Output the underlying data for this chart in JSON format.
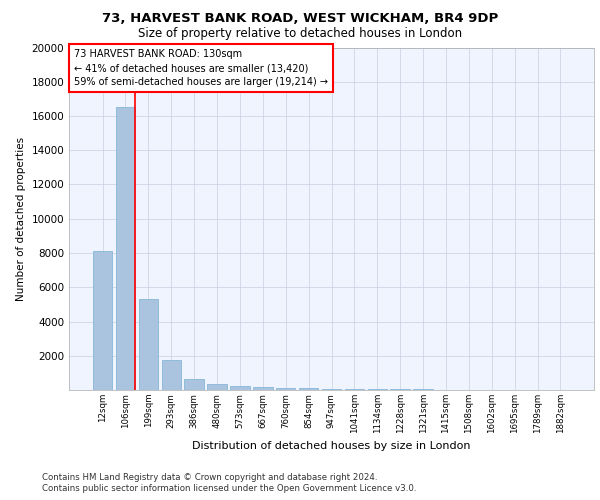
{
  "title1": "73, HARVEST BANK ROAD, WEST WICKHAM, BR4 9DP",
  "title2": "Size of property relative to detached houses in London",
  "xlabel": "Distribution of detached houses by size in London",
  "ylabel": "Number of detached properties",
  "categories": [
    "12sqm",
    "106sqm",
    "199sqm",
    "293sqm",
    "386sqm",
    "480sqm",
    "573sqm",
    "667sqm",
    "760sqm",
    "854sqm",
    "947sqm",
    "1041sqm",
    "1134sqm",
    "1228sqm",
    "1321sqm",
    "1415sqm",
    "1508sqm",
    "1602sqm",
    "1695sqm",
    "1789sqm",
    "1882sqm"
  ],
  "values": [
    8100,
    16500,
    5300,
    1750,
    620,
    340,
    230,
    170,
    130,
    100,
    80,
    60,
    50,
    40,
    30,
    25,
    20,
    18,
    15,
    12,
    10
  ],
  "bar_color": "#aac4e0",
  "bar_edge_color": "#7aafd4",
  "annotation_text1": "73 HARVEST BANK ROAD: 130sqm",
  "annotation_text2": "← 41% of detached houses are smaller (13,420)",
  "annotation_text3": "59% of semi-detached houses are larger (19,214) →",
  "ylim": [
    0,
    20000
  ],
  "yticks": [
    0,
    2000,
    4000,
    6000,
    8000,
    10000,
    12000,
    14000,
    16000,
    18000,
    20000
  ],
  "footer1": "Contains HM Land Registry data © Crown copyright and database right 2024.",
  "footer2": "Contains public sector information licensed under the Open Government Licence v3.0.",
  "plot_bg_color": "#f0f4ff",
  "grid_color": "#c8d0e0",
  "vline_x": 1.43
}
